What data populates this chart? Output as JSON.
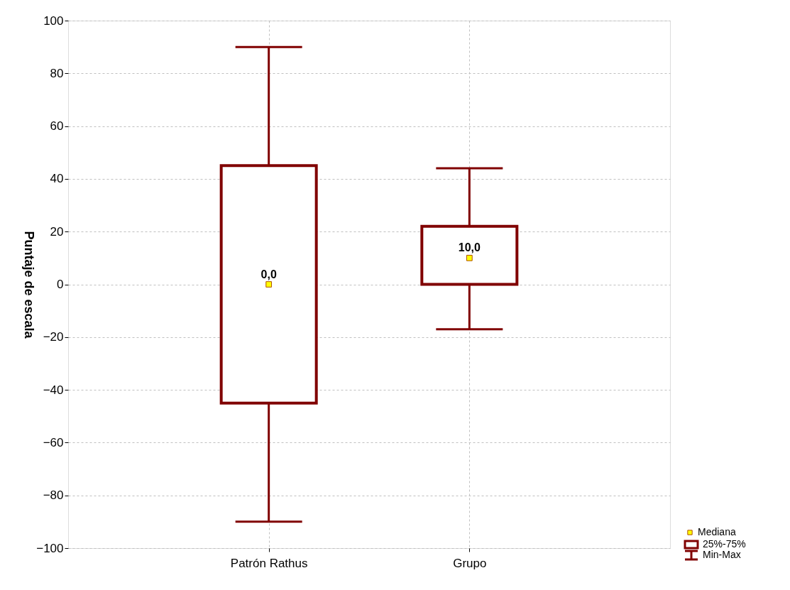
{
  "chart_data": {
    "type": "box",
    "ylabel": "Puntaje de escala",
    "categories": [
      "Patrón Rathus",
      "Grupo"
    ],
    "series": [
      {
        "name": "25%-75%",
        "color": "#800000",
        "boxes": [
          {
            "low": -90,
            "q1": -45,
            "q3": 45,
            "high": 90
          },
          {
            "low": -17,
            "q1": 0,
            "q3": 22,
            "high": 44
          }
        ]
      },
      {
        "type": "scatter",
        "name": "Mediana",
        "color": "#ffff00",
        "x": [
          "Patrón Rathus",
          "Grupo"
        ],
        "values": [
          0,
          10
        ],
        "value_labels": [
          "0,0",
          "10,0"
        ]
      }
    ],
    "annotations": [
      "Min-Max"
    ],
    "ylim": [
      -100,
      100
    ],
    "yticks": [
      -100,
      -80,
      -60,
      -40,
      -20,
      0,
      20,
      40,
      60,
      80,
      100
    ],
    "grid": true,
    "legend": "bottom right",
    "marker": "square"
  }
}
